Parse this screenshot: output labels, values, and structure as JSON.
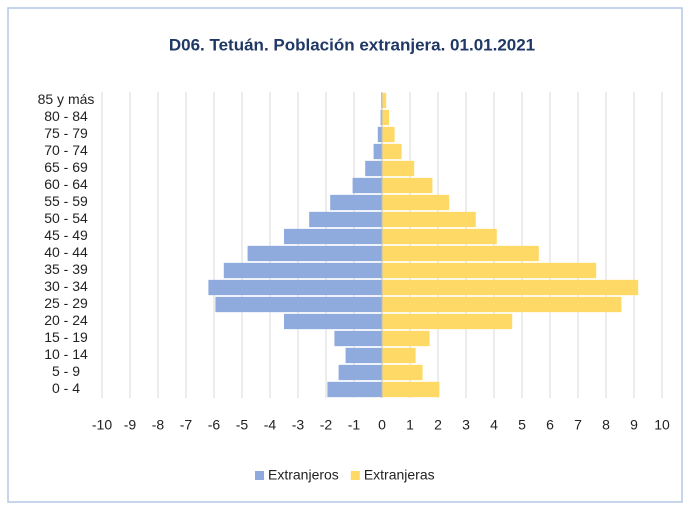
{
  "chart_data": {
    "type": "bar",
    "orientation": "horizontal",
    "stacked": false,
    "title": "D06. Tetuán. Población extranjera. 01.01.2021",
    "categories": [
      "0 - 4",
      "5 - 9",
      "10 - 14",
      "15 - 19",
      "20 - 24",
      "25 - 29",
      "30 - 34",
      "35 - 39",
      "40 - 44",
      "45 - 49",
      "50 - 54",
      "55 - 59",
      "60 - 64",
      "65 - 69",
      "70 - 74",
      "75 - 79",
      "80 - 84",
      "85 y más"
    ],
    "series": [
      {
        "name": "Extranjeros",
        "color": "#8faadc",
        "values": [
          -1.95,
          -1.55,
          -1.3,
          -1.7,
          -3.5,
          -5.95,
          -6.2,
          -5.65,
          -4.8,
          -3.5,
          -2.6,
          -1.85,
          -1.05,
          -0.6,
          -0.3,
          -0.15,
          -0.05,
          -0.03
        ]
      },
      {
        "name": "Extranjeras",
        "color": "#ffd966",
        "values": [
          2.05,
          1.45,
          1.2,
          1.7,
          4.65,
          8.55,
          9.15,
          7.65,
          5.6,
          4.1,
          3.35,
          2.4,
          1.8,
          1.15,
          0.7,
          0.45,
          0.25,
          0.15
        ]
      }
    ],
    "xlim": [
      -10,
      10
    ],
    "xticks": [
      -10,
      -9,
      -8,
      -7,
      -6,
      -5,
      -4,
      -3,
      -2,
      -1,
      0,
      1,
      2,
      3,
      4,
      5,
      6,
      7,
      8,
      9,
      10
    ],
    "grid": true,
    "legend": "bottom"
  }
}
